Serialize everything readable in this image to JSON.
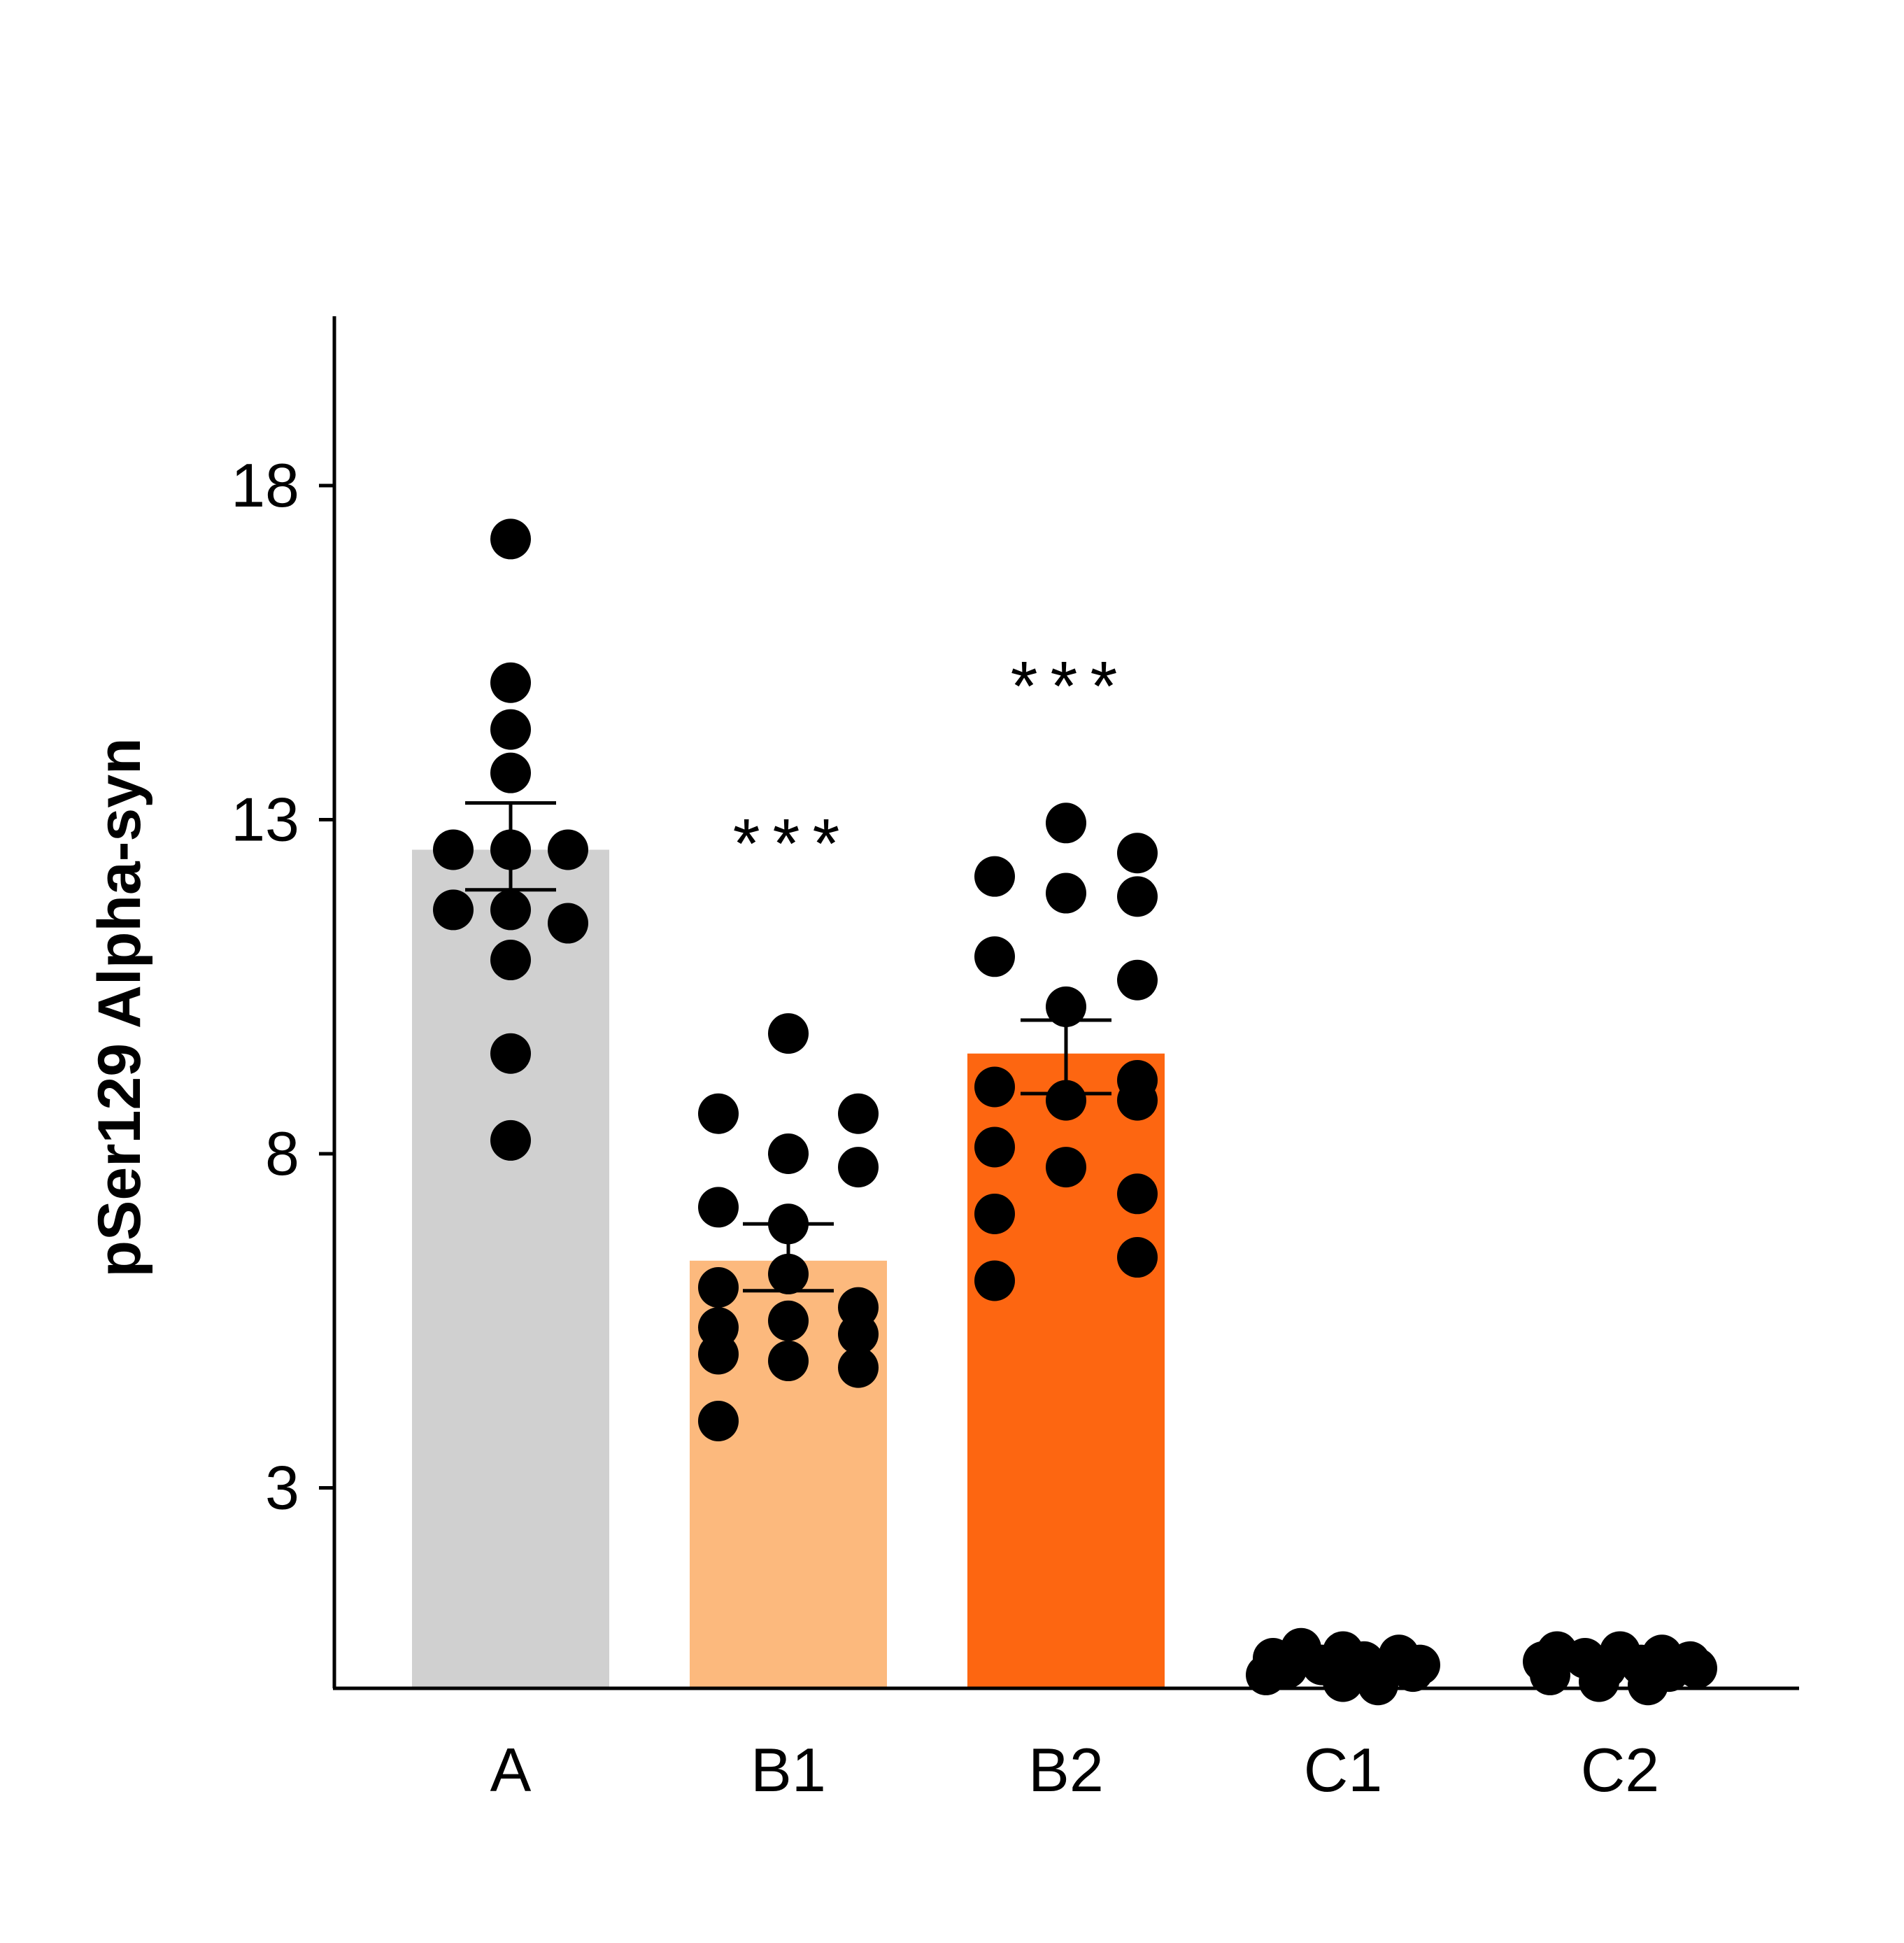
{
  "chart_data": {
    "type": "bar",
    "title": "",
    "xlabel": "",
    "ylabel": "pSer129 Alpha-syn",
    "ylim": [
      0,
      20.5
    ],
    "yticks": [
      3,
      8,
      13,
      18
    ],
    "grid": false,
    "legend": "none",
    "categories": [
      "A",
      "B1",
      "B2",
      "C1",
      "C2"
    ],
    "colors": [
      "#d0d0d0",
      "#fcb97d",
      "#fd6611",
      "#ffffff",
      "#ffffff"
    ],
    "values": [
      12.55,
      6.4,
      9.5,
      0.3,
      0.3
    ],
    "error": [
      [
        11.95,
        13.25
      ],
      [
        5.95,
        6.95
      ],
      [
        8.9,
        10.0
      ],
      null,
      null
    ],
    "significance": [
      "",
      "***",
      "***",
      "",
      ""
    ],
    "points": [
      [
        17.2,
        15.05,
        14.35,
        13.7,
        12.55,
        12.55,
        12.55,
        11.65,
        11.65,
        11.45,
        10.9,
        9.5,
        8.2
      ],
      [
        9.8,
        8.6,
        8.6,
        8.0,
        7.8,
        7.2,
        6.95,
        6.2,
        6.0,
        5.7,
        5.5,
        5.4,
        5.3,
        5.0,
        4.9,
        4.8,
        4.0
      ],
      [
        12.95,
        12.5,
        12.15,
        11.85,
        11.9,
        10.95,
        10.6,
        10.2,
        9.0,
        9.1,
        8.8,
        8.8,
        8.1,
        7.8,
        7.4,
        7.1,
        6.45,
        6.1
      ],
      [
        0.6,
        0.55,
        0.5,
        0.45,
        0.4,
        0.35,
        0.35,
        0.3,
        0.3,
        0.25,
        0.2,
        0.1,
        0.05
      ],
      [
        0.55,
        0.55,
        0.5,
        0.45,
        0.4,
        0.4,
        0.35,
        0.3,
        0.3,
        0.25,
        0.2,
        0.1,
        0.05
      ]
    ]
  }
}
